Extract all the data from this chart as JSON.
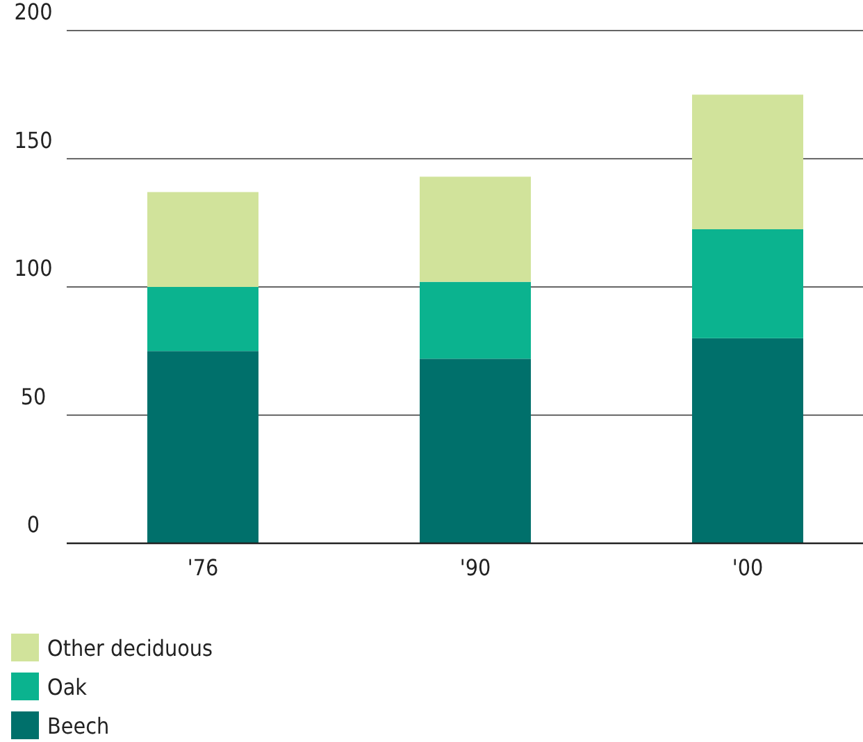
{
  "chart_data": {
    "type": "bar",
    "stacked": true,
    "categories": [
      "'76",
      "'90",
      "'00"
    ],
    "series": [
      {
        "name": "Beech",
        "color": "#00706b",
        "values": [
          75,
          72,
          80
        ]
      },
      {
        "name": "Oak",
        "color": "#0bb38f",
        "values": [
          25,
          30,
          42.5
        ]
      },
      {
        "name": "Other deciduous",
        "color": "#d1e39b",
        "values": [
          37,
          41,
          52.5
        ]
      }
    ],
    "ylim": [
      0,
      200
    ],
    "yticks": [
      0,
      50,
      100,
      150,
      200
    ],
    "grid": "y",
    "legend": "bottom"
  }
}
